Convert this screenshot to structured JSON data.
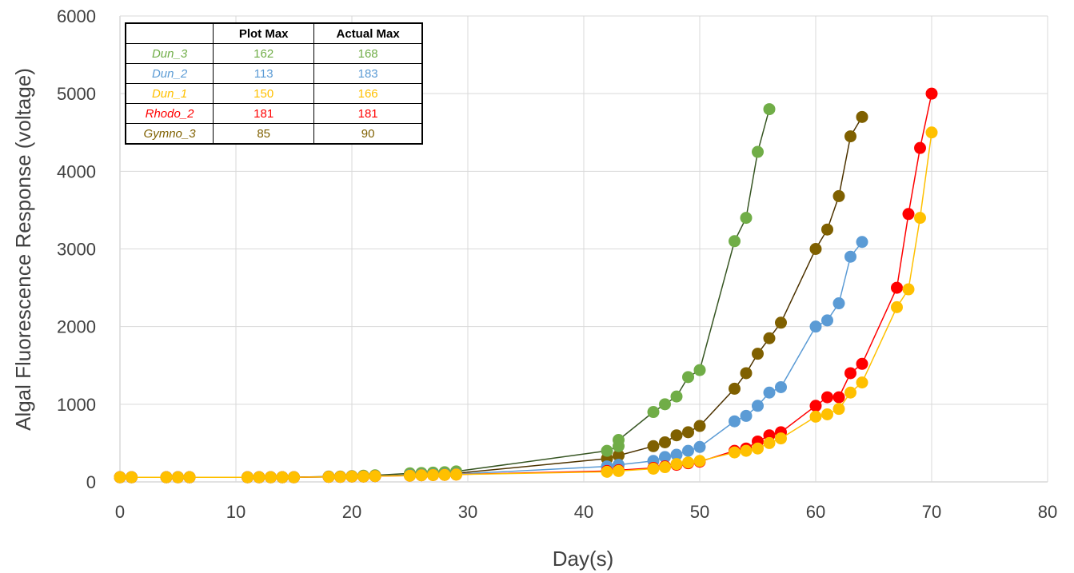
{
  "chart_data": {
    "type": "line",
    "xlabel": "Day(s)",
    "ylabel": "Algal Fluorescence Response (voltage)",
    "xlim": [
      0,
      80
    ],
    "ylim": [
      0,
      6000
    ],
    "xticks": [
      0,
      10,
      20,
      30,
      40,
      50,
      60,
      70,
      80
    ],
    "yticks": [
      0,
      1000,
      2000,
      3000,
      4000,
      5000,
      6000
    ],
    "grid": true,
    "series": [
      {
        "name": "Gymno_3",
        "line_color": "#4d3300",
        "marker_color": "#7f6000",
        "x": [
          0,
          1,
          4,
          5,
          6,
          11,
          12,
          13,
          14,
          15,
          18,
          19,
          20,
          21,
          22,
          25,
          26,
          27,
          28,
          29,
          42,
          43,
          46,
          47,
          48,
          49,
          50,
          53,
          54,
          55,
          56,
          57,
          60,
          61,
          62,
          63,
          64
        ],
        "y": [
          60,
          60,
          60,
          60,
          60,
          60,
          60,
          60,
          60,
          60,
          65,
          65,
          70,
          70,
          75,
          90,
          95,
          100,
          105,
          110,
          300,
          340,
          460,
          510,
          600,
          640,
          720,
          1200,
          1400,
          1650,
          1850,
          2050,
          3000,
          3250,
          3680,
          4450,
          4700
        ]
      },
      {
        "name": "Dun_3",
        "line_color": "#375623",
        "marker_color": "#70ad47",
        "x": [
          0,
          1,
          4,
          5,
          6,
          11,
          12,
          13,
          14,
          15,
          18,
          19,
          20,
          21,
          22,
          25,
          26,
          27,
          28,
          29,
          42,
          43,
          43,
          46,
          47,
          48,
          49,
          50,
          53,
          54,
          55,
          56
        ],
        "y": [
          60,
          60,
          60,
          60,
          60,
          60,
          60,
          60,
          60,
          60,
          70,
          70,
          75,
          80,
          85,
          110,
          115,
          120,
          125,
          135,
          400,
          460,
          540,
          900,
          1000,
          1100,
          1350,
          1440,
          3100,
          3400,
          4250,
          4800
        ]
      },
      {
        "name": "Dun_2",
        "line_color": "#5b9bd5",
        "marker_color": "#5b9bd5",
        "x": [
          0,
          1,
          4,
          5,
          6,
          11,
          12,
          13,
          14,
          15,
          18,
          19,
          20,
          21,
          22,
          25,
          26,
          27,
          28,
          29,
          42,
          43,
          46,
          47,
          48,
          49,
          50,
          53,
          54,
          55,
          56,
          57,
          60,
          61,
          62,
          63,
          64
        ],
        "y": [
          60,
          60,
          60,
          60,
          60,
          60,
          60,
          60,
          60,
          60,
          65,
          65,
          70,
          70,
          75,
          85,
          90,
          92,
          95,
          100,
          200,
          220,
          270,
          320,
          350,
          400,
          450,
          780,
          850,
          980,
          1150,
          1220,
          2000,
          2080,
          2300,
          2900,
          3090
        ]
      },
      {
        "name": "Rhodo_2",
        "line_color": "#ff0000",
        "marker_color": "#ff0000",
        "x": [
          0,
          1,
          4,
          5,
          6,
          11,
          12,
          13,
          14,
          15,
          18,
          19,
          20,
          21,
          22,
          25,
          26,
          27,
          28,
          29,
          42,
          43,
          46,
          47,
          48,
          49,
          50,
          53,
          54,
          55,
          56,
          57,
          60,
          61,
          62,
          63,
          64,
          67,
          68,
          69,
          70
        ],
        "y": [
          60,
          60,
          60,
          60,
          60,
          60,
          60,
          60,
          60,
          60,
          65,
          65,
          70,
          70,
          75,
          80,
          85,
          88,
          90,
          95,
          140,
          150,
          180,
          200,
          220,
          240,
          260,
          400,
          430,
          520,
          600,
          640,
          980,
          1090,
          1090,
          1400,
          1520,
          2500,
          3450,
          4300,
          5000
        ]
      },
      {
        "name": "Dun_1",
        "line_color": "#ffc000",
        "marker_color": "#ffc000",
        "x": [
          0,
          1,
          4,
          5,
          6,
          11,
          12,
          13,
          14,
          15,
          18,
          19,
          20,
          21,
          22,
          25,
          26,
          27,
          28,
          29,
          42,
          43,
          46,
          47,
          48,
          49,
          50,
          53,
          54,
          55,
          56,
          57,
          60,
          61,
          62,
          63,
          64,
          67,
          68,
          69,
          70
        ],
        "y": [
          60,
          60,
          60,
          60,
          60,
          60,
          60,
          60,
          60,
          60,
          65,
          65,
          70,
          70,
          75,
          80,
          85,
          88,
          90,
          95,
          130,
          140,
          170,
          190,
          230,
          250,
          270,
          380,
          400,
          430,
          500,
          560,
          840,
          870,
          940,
          1150,
          1280,
          2250,
          2480,
          3400,
          4500
        ]
      }
    ],
    "table": {
      "headers": [
        "",
        "Plot Max",
        "Actual Max"
      ],
      "rows": [
        {
          "name": "Dun_3",
          "plot_max": "162",
          "actual_max": "168",
          "color": "#70ad47"
        },
        {
          "name": "Dun_2",
          "plot_max": "113",
          "actual_max": "183",
          "color": "#5b9bd5"
        },
        {
          "name": "Dun_1",
          "plot_max": "150",
          "actual_max": "166",
          "color": "#ffc000"
        },
        {
          "name": "Rhodo_2",
          "plot_max": "181",
          "actual_max": "181",
          "color": "#ff0000"
        },
        {
          "name": "Gymno_3",
          "plot_max": "85",
          "actual_max": "90",
          "color": "#7f6000"
        }
      ]
    }
  }
}
